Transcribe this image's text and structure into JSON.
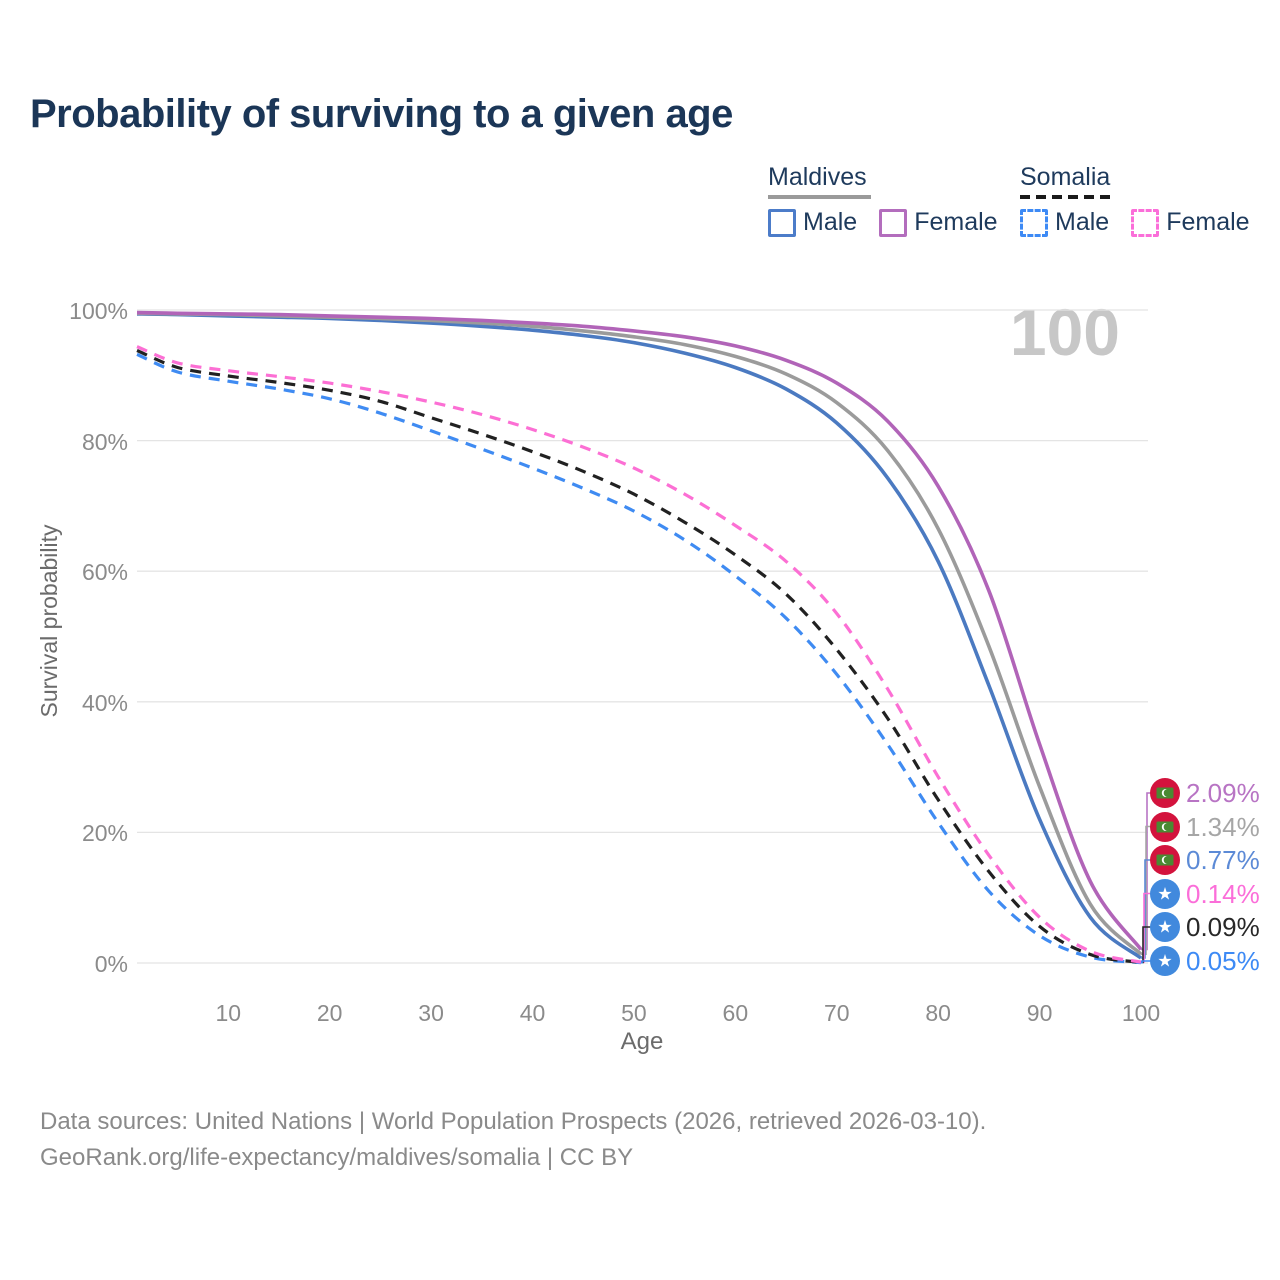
{
  "title": "Probability of surviving to a given age",
  "legend": {
    "groups": [
      {
        "name": "Maldives",
        "line_style": "solid",
        "underline_color": "#9a9a9a",
        "items": [
          {
            "label": "Male",
            "color": "#4c7cc9"
          },
          {
            "label": "Female",
            "color": "#b36dbd"
          }
        ]
      },
      {
        "name": "Somalia",
        "line_style": "dashed",
        "underline_color": "#1a1a1a",
        "items": [
          {
            "label": "Male",
            "color": "#3d8af5"
          },
          {
            "label": "Female",
            "color": "#fb6ed9"
          }
        ]
      }
    ]
  },
  "chart_data": {
    "type": "line",
    "title": "Probability of surviving to a given age",
    "xlabel": "Age",
    "ylabel": "Survival probability",
    "xlim": [
      1,
      100
    ],
    "ylim": [
      0,
      100
    ],
    "grid": "horizontal",
    "legend_position": "top-right",
    "hover_age_indicator": "100",
    "x_ticks": [
      10,
      20,
      30,
      40,
      50,
      60,
      70,
      80,
      90,
      100
    ],
    "y_ticks": [
      {
        "value": 0,
        "label": "0%"
      },
      {
        "value": 20,
        "label": "20%"
      },
      {
        "value": 40,
        "label": "40%"
      },
      {
        "value": 60,
        "label": "60%"
      },
      {
        "value": 80,
        "label": "80%"
      },
      {
        "value": 100,
        "label": "100%"
      }
    ],
    "series": [
      {
        "name": "Maldives Female",
        "country": "Maldives",
        "sex": "female",
        "color": "#b164b8",
        "dash": false,
        "flag": "maldives",
        "end_label": "2.09%",
        "label_color": "#b874c4",
        "points": [
          [
            1,
            99.6
          ],
          [
            5,
            99.5
          ],
          [
            10,
            99.4
          ],
          [
            15,
            99.3
          ],
          [
            20,
            99.1
          ],
          [
            25,
            98.9
          ],
          [
            30,
            98.7
          ],
          [
            35,
            98.4
          ],
          [
            40,
            98.0
          ],
          [
            45,
            97.5
          ],
          [
            50,
            96.8
          ],
          [
            55,
            95.9
          ],
          [
            60,
            94.5
          ],
          [
            65,
            92.3
          ],
          [
            70,
            88.8
          ],
          [
            75,
            83.0
          ],
          [
            80,
            73.0
          ],
          [
            85,
            57.0
          ],
          [
            90,
            33.5
          ],
          [
            95,
            12.5
          ],
          [
            100,
            2.09
          ]
        ]
      },
      {
        "name": "Maldives Both sexes",
        "country": "Maldives",
        "sex": "all",
        "color": "#9b9b9b",
        "dash": false,
        "flag": "maldives",
        "end_label": "1.34%",
        "label_color": "#a6a6a6",
        "points": [
          [
            1,
            99.5
          ],
          [
            5,
            99.4
          ],
          [
            10,
            99.3
          ],
          [
            15,
            99.1
          ],
          [
            20,
            98.9
          ],
          [
            25,
            98.7
          ],
          [
            30,
            98.4
          ],
          [
            35,
            98.0
          ],
          [
            40,
            97.5
          ],
          [
            45,
            96.8
          ],
          [
            50,
            95.9
          ],
          [
            55,
            94.7
          ],
          [
            60,
            92.9
          ],
          [
            65,
            90.2
          ],
          [
            70,
            85.8
          ],
          [
            75,
            78.5
          ],
          [
            80,
            66.5
          ],
          [
            85,
            48.5
          ],
          [
            90,
            27.0
          ],
          [
            95,
            9.0
          ],
          [
            100,
            1.34
          ]
        ]
      },
      {
        "name": "Maldives Male",
        "country": "Maldives",
        "sex": "male",
        "color": "#4b7ac1",
        "dash": false,
        "flag": "maldives",
        "end_label": "0.77%",
        "label_color": "#5c8ad6",
        "points": [
          [
            1,
            99.4
          ],
          [
            5,
            99.3
          ],
          [
            10,
            99.1
          ],
          [
            15,
            98.9
          ],
          [
            20,
            98.7
          ],
          [
            25,
            98.4
          ],
          [
            30,
            98.0
          ],
          [
            35,
            97.5
          ],
          [
            40,
            96.9
          ],
          [
            45,
            96.1
          ],
          [
            50,
            95.0
          ],
          [
            55,
            93.4
          ],
          [
            60,
            91.2
          ],
          [
            65,
            87.9
          ],
          [
            70,
            82.7
          ],
          [
            75,
            74.3
          ],
          [
            80,
            61.5
          ],
          [
            85,
            42.5
          ],
          [
            90,
            22.0
          ],
          [
            95,
            7.0
          ],
          [
            100,
            0.77
          ]
        ]
      },
      {
        "name": "Somalia Female",
        "country": "Somalia",
        "sex": "female",
        "color": "#fc6fd4",
        "dash": true,
        "flag": "somalia",
        "end_label": "0.14%",
        "label_color": "#fb6ed9",
        "points": [
          [
            1,
            94.4
          ],
          [
            5,
            91.9
          ],
          [
            10,
            90.7
          ],
          [
            15,
            89.8
          ],
          [
            20,
            88.8
          ],
          [
            25,
            87.5
          ],
          [
            30,
            85.9
          ],
          [
            35,
            84.0
          ],
          [
            40,
            81.7
          ],
          [
            45,
            79.0
          ],
          [
            50,
            75.8
          ],
          [
            55,
            71.8
          ],
          [
            60,
            67.0
          ],
          [
            65,
            61.5
          ],
          [
            70,
            53.5
          ],
          [
            75,
            42.0
          ],
          [
            80,
            28.5
          ],
          [
            85,
            16.5
          ],
          [
            90,
            7.0
          ],
          [
            95,
            1.8
          ],
          [
            100,
            0.14
          ]
        ]
      },
      {
        "name": "Somalia Both sexes",
        "country": "Somalia",
        "sex": "all",
        "color": "#212121",
        "dash": true,
        "flag": "somalia",
        "end_label": "0.09%",
        "label_color": "#282828",
        "points": [
          [
            1,
            93.8
          ],
          [
            5,
            91.2
          ],
          [
            10,
            89.9
          ],
          [
            15,
            88.9
          ],
          [
            20,
            87.7
          ],
          [
            25,
            86.0
          ],
          [
            30,
            83.5
          ],
          [
            35,
            81.0
          ],
          [
            40,
            78.3
          ],
          [
            45,
            75.3
          ],
          [
            50,
            71.8
          ],
          [
            55,
            67.5
          ],
          [
            60,
            62.5
          ],
          [
            65,
            56.5
          ],
          [
            70,
            48.0
          ],
          [
            75,
            37.5
          ],
          [
            80,
            25.0
          ],
          [
            85,
            14.0
          ],
          [
            90,
            5.6
          ],
          [
            95,
            1.3
          ],
          [
            100,
            0.09
          ]
        ]
      },
      {
        "name": "Somalia Male",
        "country": "Somalia",
        "sex": "male",
        "color": "#3f8bf2",
        "dash": true,
        "flag": "somalia",
        "end_label": "0.05%",
        "label_color": "#3d8af5",
        "points": [
          [
            1,
            93.2
          ],
          [
            5,
            90.5
          ],
          [
            10,
            89.1
          ],
          [
            15,
            87.9
          ],
          [
            20,
            86.4
          ],
          [
            25,
            84.2
          ],
          [
            30,
            81.5
          ],
          [
            35,
            78.7
          ],
          [
            40,
            75.8
          ],
          [
            45,
            72.7
          ],
          [
            50,
            69.2
          ],
          [
            55,
            64.8
          ],
          [
            60,
            59.3
          ],
          [
            65,
            52.8
          ],
          [
            70,
            44.2
          ],
          [
            75,
            33.5
          ],
          [
            80,
            21.5
          ],
          [
            85,
            11.0
          ],
          [
            90,
            4.2
          ],
          [
            95,
            0.9
          ],
          [
            100,
            0.05
          ]
        ]
      }
    ]
  },
  "footer": {
    "line1": "Data sources: United Nations | World Population Prospects (2026, retrieved 2026-03-10).",
    "line2": "GeoRank.org/life-expectancy/maldives/somalia | CC BY"
  }
}
